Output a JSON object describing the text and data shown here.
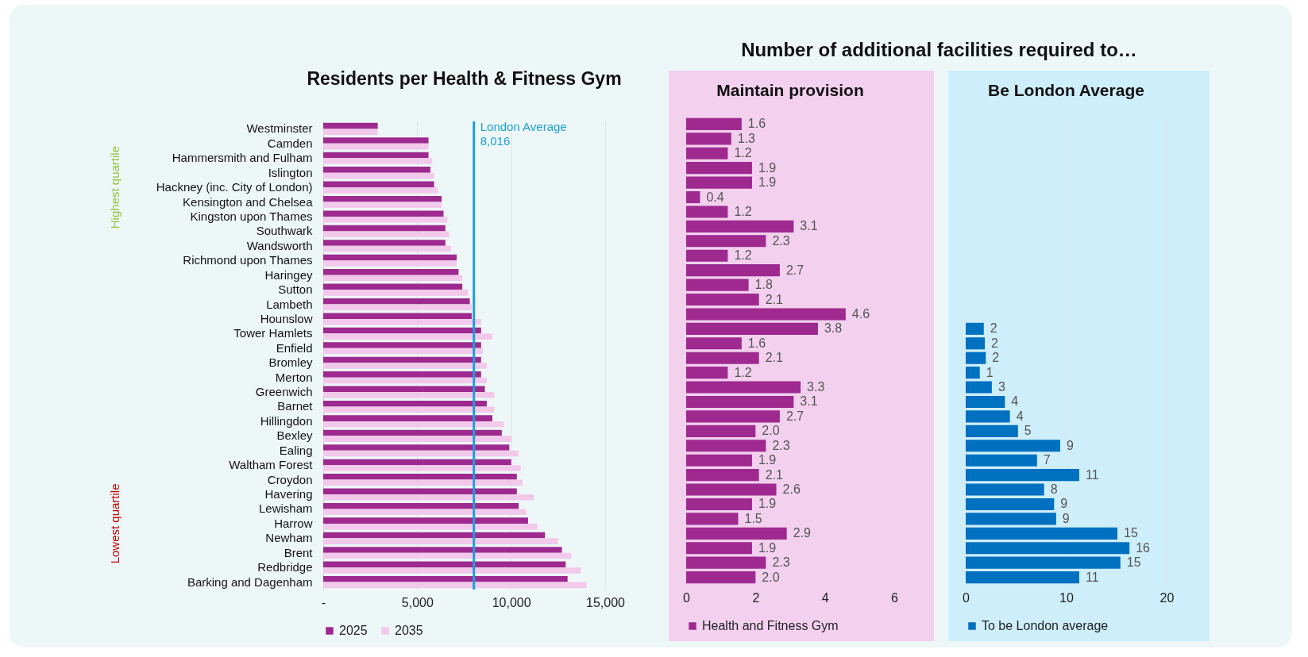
{
  "chart_data": [
    {
      "type": "bar",
      "orientation": "horizontal",
      "title": "Residents per Health & Fitness Gym",
      "categories": [
        "Westminster",
        "Camden",
        "Hammersmith and Fulham",
        "Islington",
        "Hackney (inc. City of London)",
        "Kensington and Chelsea",
        "Kingston upon Thames",
        "Southwark",
        "Wandsworth",
        "Richmond upon Thames",
        "Haringey",
        "Sutton",
        "Lambeth",
        "Hounslow",
        "Tower Hamlets",
        "Enfield",
        "Bromley",
        "Merton",
        "Greenwich",
        "Barnet",
        "Hillingdon",
        "Bexley",
        "Ealing",
        "Waltham Forest",
        "Croydon",
        "Havering",
        "Lewisham",
        "Harrow",
        "Newham",
        "Brent",
        "Redbridge",
        "Barking and Dagenham"
      ],
      "series": [
        {
          "name": "2025",
          "color": "#9e2a8f",
          "values": [
            2900,
            5600,
            5600,
            5700,
            5900,
            6300,
            6400,
            6500,
            6500,
            7100,
            7200,
            7400,
            7800,
            7900,
            8400,
            8400,
            8400,
            8400,
            8600,
            8700,
            9000,
            9500,
            9900,
            10000,
            10300,
            10300,
            10400,
            10900,
            11800,
            12700,
            12900,
            13000
          ]
        },
        {
          "name": "2035",
          "color": "#f2c9ea",
          "values": [
            2900,
            5600,
            5800,
            5900,
            6100,
            6300,
            6600,
            6700,
            6800,
            7100,
            7400,
            7700,
            7900,
            8400,
            9000,
            8500,
            8700,
            8700,
            9100,
            9100,
            9600,
            10000,
            10400,
            10500,
            10600,
            11200,
            10800,
            11400,
            12500,
            13200,
            13700,
            14000
          ]
        }
      ],
      "xlim": [
        0,
        15000
      ],
      "xticks": [
        {
          "value": 0,
          "label": "-"
        },
        {
          "value": 5000,
          "label": "5,000"
        },
        {
          "value": 10000,
          "label": "10,000"
        },
        {
          "value": 15000,
          "label": "15,000"
        }
      ],
      "grid": "x",
      "legend": "bottom",
      "ref_lines": [
        {
          "axis": "x",
          "value": 8016,
          "label": "London Average\n8,016",
          "color": "#1ba0d8"
        }
      ],
      "annotations": [
        "Highest quartile",
        "Lowest quartile"
      ]
    },
    {
      "type": "bar",
      "orientation": "horizontal",
      "title": "Maintain provision",
      "categories": [
        null,
        null,
        null,
        null,
        null,
        null,
        null,
        null,
        null,
        null,
        null,
        null,
        null,
        null,
        null,
        null,
        null,
        null,
        null,
        null,
        null,
        null,
        null,
        null,
        null,
        null,
        null,
        null,
        null,
        null,
        null,
        null
      ],
      "series": [
        {
          "name": "Health and Fitness Gym",
          "color": "#9e2a8f",
          "values": [
            1.6,
            1.3,
            1.2,
            1.9,
            1.9,
            0.4,
            1.2,
            3.1,
            2.3,
            1.2,
            2.7,
            1.8,
            2.1,
            4.6,
            3.8,
            1.6,
            2.1,
            1.2,
            3.3,
            3.1,
            2.7,
            2.0,
            2.3,
            1.9,
            2.1,
            2.6,
            1.9,
            1.5,
            2.9,
            1.9,
            2.3,
            2.0
          ]
        }
      ],
      "value_labels": [
        "1.6",
        "1.3",
        "1.2",
        "1.9",
        "1.9",
        "0.4",
        "1.2",
        "3.1",
        "2.3",
        "1.2",
        "2.7",
        "1.8",
        "2.1",
        "4.6",
        "3.8",
        "1.6",
        "2.1",
        "1.2",
        "3.3",
        "3.1",
        "2.7",
        "2.0",
        "2.3",
        "1.9",
        "2.1",
        "2.6",
        "1.9",
        "1.5",
        "2.9",
        "1.9",
        "2.3",
        "2.0"
      ],
      "xlim": [
        0,
        6
      ],
      "xticks": [
        0,
        2,
        4,
        6
      ],
      "legend": "bottom",
      "tick_labels": "x",
      "annotations": [
        "Number of additional facilities required to…"
      ]
    },
    {
      "type": "bar",
      "orientation": "horizontal",
      "title": "Be London Average",
      "categories": [
        null,
        null,
        null,
        null,
        null,
        null,
        null,
        null,
        null,
        null,
        null,
        null,
        null,
        null,
        null,
        null,
        null,
        null,
        null,
        null,
        null,
        null,
        null,
        null,
        null,
        null,
        null,
        null,
        null,
        null,
        null,
        null
      ],
      "series": [
        {
          "name": "To be London average",
          "color": "#0070c0",
          "values": [
            null,
            null,
            null,
            null,
            null,
            null,
            null,
            null,
            null,
            null,
            null,
            null,
            null,
            null,
            1.8,
            1.9,
            2.0,
            1.4,
            2.6,
            3.9,
            4.4,
            5.2,
            9.4,
            7.1,
            11.3,
            7.8,
            8.8,
            9.0,
            15.1,
            16.3,
            15.4,
            11.3
          ]
        }
      ],
      "value_labels": [
        null,
        null,
        null,
        null,
        null,
        null,
        null,
        null,
        null,
        null,
        null,
        null,
        null,
        null,
        "2",
        "2",
        "2",
        "1",
        "3",
        "4",
        "4",
        "5",
        "9",
        "7",
        "11",
        "8",
        "9",
        "9",
        "15",
        "16",
        "15",
        "11"
      ],
      "xlim": [
        0,
        20
      ],
      "xticks": [
        0,
        10,
        20
      ],
      "grid": "x",
      "legend": "bottom",
      "tick_labels": "x"
    }
  ]
}
